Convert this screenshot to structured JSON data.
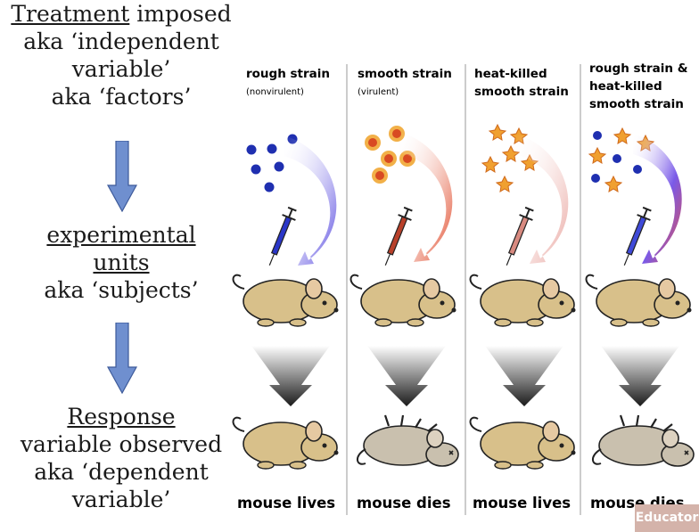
{
  "left_panel": {
    "treatment": {
      "title": "Treatment",
      "title_rest": " imposed",
      "line2": "aka ‘independent",
      "line3": "variable’",
      "line4": "aka ‘factors’"
    },
    "units": {
      "title_line1": "experimental",
      "title_line2": "units",
      "line3": "aka ‘subjects’"
    },
    "response": {
      "title": "Response",
      "line2": "variable observed",
      "line3": "aka ‘dependent",
      "line4": "variable’"
    }
  },
  "columns": [
    {
      "head1": "rough strain",
      "head2": "",
      "head3": "",
      "sub": "(nonvirulent)",
      "result": "mouse lives",
      "outcome": "lives"
    },
    {
      "head1": "smooth strain",
      "head2": "",
      "head3": "",
      "sub": "(virulent)",
      "result": "mouse dies",
      "outcome": "dies"
    },
    {
      "head1": "heat-killed",
      "head2": "smooth strain",
      "head3": "",
      "sub": "",
      "result": "mouse lives",
      "outcome": "lives"
    },
    {
      "head1": "rough strain &",
      "head2": "heat-killed",
      "head3": "smooth strain",
      "sub": "",
      "result": "mouse dies",
      "outcome": "dies"
    }
  ],
  "watermark": "Educator",
  "colors": {
    "arrow_blue": "#6f8fcf",
    "rough_bacteria": "#1f2fb0",
    "smooth_bacteria": "#d84a22",
    "heat_killed": "#f0a030",
    "mouse_alive": "#d8c08a",
    "mouse_dead": "#c9c0ae"
  }
}
